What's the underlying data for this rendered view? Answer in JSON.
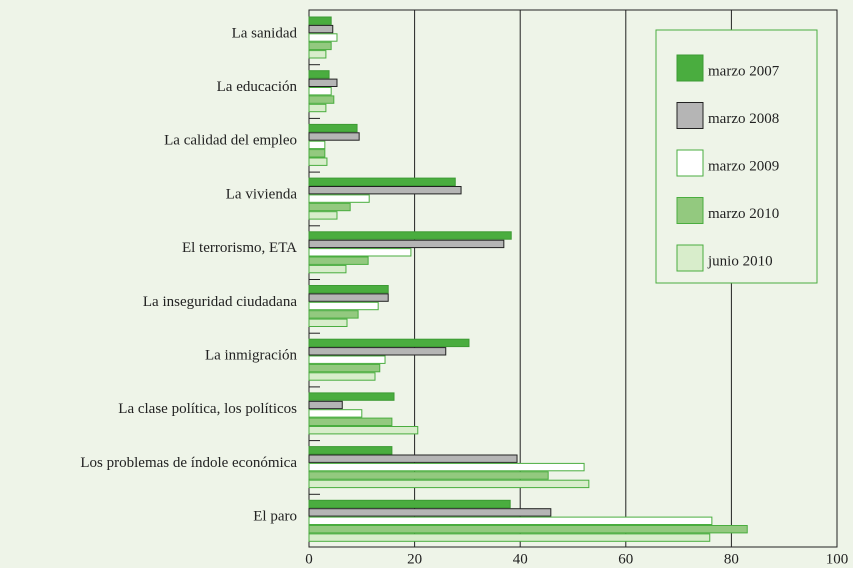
{
  "chart_data": {
    "type": "barh",
    "categories": [
      "La sanidad",
      "La educación",
      "La calidad del empleo",
      "La vivienda",
      "El terrorismo, ETA",
      "La inseguridad ciudadana",
      "La inmigración",
      "La clase política, los políticos",
      "Los problemas de índole económica",
      "El paro"
    ],
    "series": [
      {
        "name": "marzo 2007",
        "color": "#4aad3f",
        "edgecolor": "#3c9a33",
        "values": [
          4.2,
          3.8,
          9.1,
          27.7,
          38.3,
          15.0,
          30.3,
          16.1,
          15.7,
          38.1
        ]
      },
      {
        "name": "marzo 2008",
        "color": "#b5b5b5",
        "edgecolor": "#222222",
        "values": [
          4.5,
          5.3,
          9.5,
          28.8,
          36.9,
          15.0,
          25.9,
          6.3,
          39.4,
          45.8
        ]
      },
      {
        "name": "marzo 2009",
        "color": "#ffffff",
        "edgecolor": "#4aad3f",
        "values": [
          5.3,
          4.2,
          3.0,
          11.4,
          19.3,
          13.1,
          14.4,
          10.0,
          52.1,
          76.3
        ]
      },
      {
        "name": "marzo 2010",
        "color": "#93c97f",
        "edgecolor": "#4aad3f",
        "values": [
          4.2,
          4.7,
          3.0,
          7.8,
          11.2,
          9.3,
          13.4,
          15.7,
          45.3,
          83.0
        ]
      },
      {
        "name": "junio 2010",
        "color": "#d8edcb",
        "edgecolor": "#4aad3f",
        "values": [
          3.2,
          3.2,
          3.4,
          5.3,
          7.0,
          7.2,
          12.5,
          20.6,
          53.0,
          75.9
        ]
      }
    ],
    "xlim": [
      0,
      100
    ],
    "xticks": [
      0,
      20,
      40,
      60,
      80,
      100
    ],
    "grid": true,
    "legend": "upper right"
  }
}
